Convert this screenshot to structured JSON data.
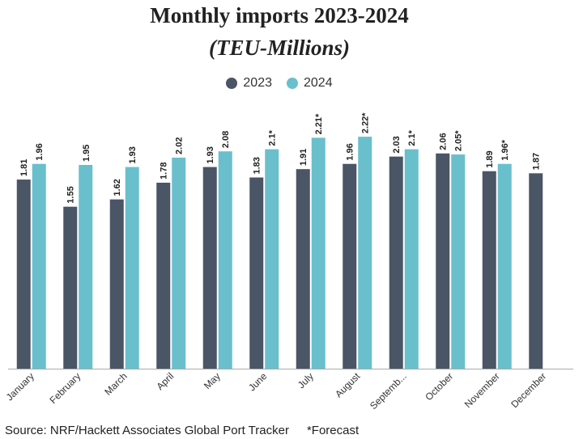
{
  "colors": {
    "series_2023": "#4a5566",
    "series_2024": "#6abfcc",
    "axis": "#aaaaaa",
    "text": "#222222"
  },
  "footer": {
    "source": "Source: NRF/Hackett Associates Global Port Tracker",
    "note": "*Forecast"
  },
  "chart_data": {
    "type": "bar",
    "title": "Monthly imports 2023-2024",
    "subtitle": "(TEU-Millions)",
    "legend_position": "top-center",
    "grid": false,
    "ylim": [
      0,
      2.6
    ],
    "categories": [
      "January",
      "February",
      "March",
      "April",
      "May",
      "June",
      "July",
      "August",
      "Septemb...",
      "October",
      "November",
      "December"
    ],
    "series": [
      {
        "name": "2023",
        "values": [
          1.81,
          1.55,
          1.62,
          1.78,
          1.93,
          1.83,
          1.91,
          1.96,
          2.03,
          2.06,
          1.89,
          1.87
        ],
        "labels": [
          "1.81",
          "1.55",
          "1.62",
          "1.78",
          "1.93",
          "1.83",
          "1.91",
          "1.96",
          "2.03",
          "2.06",
          "1.89",
          "1.87"
        ]
      },
      {
        "name": "2024",
        "values": [
          1.96,
          1.95,
          1.93,
          2.02,
          2.08,
          2.1,
          2.21,
          2.22,
          2.1,
          2.05,
          1.96,
          null
        ],
        "labels": [
          "1.96",
          "1.95",
          "1.93",
          "2.02",
          "2.08",
          "2.1*",
          "2.21*",
          "2.22*",
          "2.1*",
          "2.05*",
          "1.96*",
          ""
        ]
      }
    ]
  }
}
